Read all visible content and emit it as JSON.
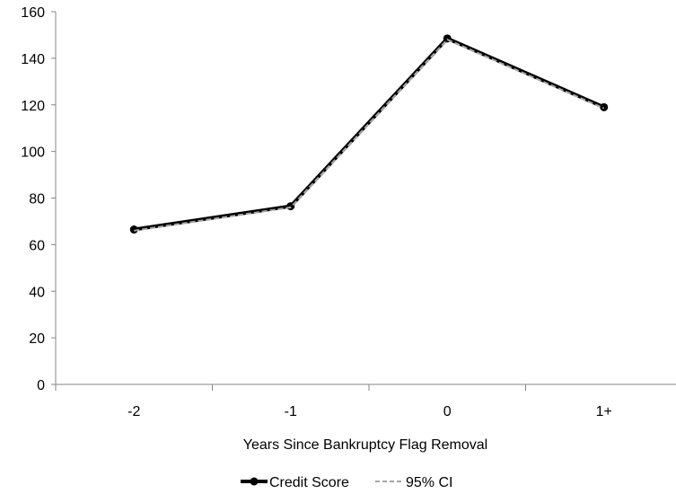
{
  "chart_data": {
    "type": "line",
    "categories": [
      "-2",
      "-1",
      "0",
      "1+"
    ],
    "series": [
      {
        "name": "Credit Score",
        "values": [
          66.5,
          76.5,
          148.5,
          119
        ]
      },
      {
        "name": "95% CI",
        "values": [
          66,
          76,
          148,
          118.5
        ]
      }
    ],
    "xlabel": "Years Since Bankruptcy Flag Removal",
    "ylabel": "",
    "ylim": [
      0,
      160
    ],
    "yticks": [
      "0",
      "20",
      "40",
      "60",
      "80",
      "100",
      "120",
      "140",
      "160"
    ],
    "grid": false,
    "legend_position": "bottom",
    "colors": {
      "credit_score": "#000000",
      "ci": "#a6a6a6",
      "axis": "#868686"
    }
  }
}
